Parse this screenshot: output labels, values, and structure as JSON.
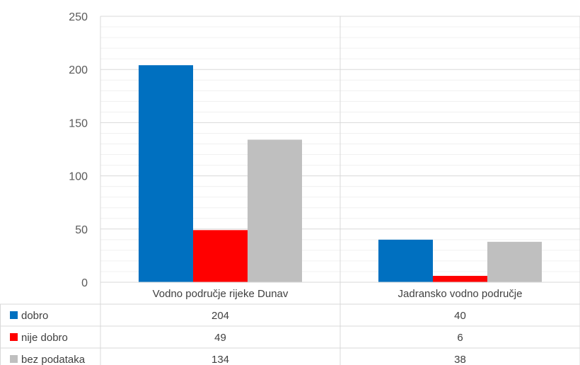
{
  "chart_data": {
    "type": "bar",
    "categories": [
      "Vodno područje rijeke Dunav",
      "Jadransko vodno područje"
    ],
    "series": [
      {
        "name": "dobro",
        "color": "#0070C0",
        "values": [
          204,
          40
        ]
      },
      {
        "name": "nije dobro",
        "color": "#FF0000",
        "values": [
          49,
          6
        ]
      },
      {
        "name": "bez podataka",
        "color": "#BFBFBF",
        "values": [
          134,
          38
        ]
      }
    ],
    "y_ticks": [
      "0",
      "50",
      "100",
      "150",
      "200",
      "250"
    ],
    "ylim": [
      0,
      250
    ],
    "grid": true,
    "data_table": true
  }
}
